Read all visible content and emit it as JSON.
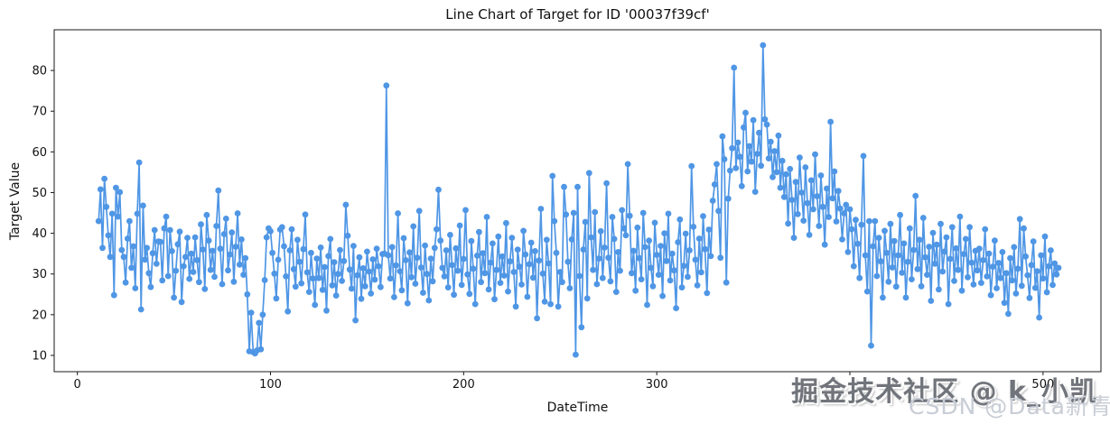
{
  "figure": {
    "title": "Line Chart of Target for ID '00037f39cf'"
  },
  "watermarks": {
    "juejin": "掘金技术社区 @ k_小凯",
    "csdn": "CSDN @Data新青年"
  },
  "chart_data": {
    "type": "line",
    "title": "Line Chart of Target for ID '00037f39cf'",
    "xlabel": "DateTime",
    "ylabel": "Target Value",
    "series_name": "Target",
    "series_color": "#4f96e5",
    "marker": "circle",
    "grid": false,
    "legend": null,
    "xlim": [
      -12,
      530
    ],
    "ylim": [
      6,
      90
    ],
    "x_ticks": [
      0,
      100,
      200,
      300,
      400,
      500
    ],
    "x_tick_labels": [
      "0",
      "100",
      "200",
      "300",
      "",
      "500"
    ],
    "x_tick_label_400_hidden_by_watermark": true,
    "y_ticks": [
      10,
      20,
      30,
      40,
      50,
      60,
      70,
      80
    ],
    "x_start": 11,
    "x_step": 1,
    "y_values": [
      43.0,
      50.8,
      36.4,
      53.4,
      46.5,
      39.5,
      34.2,
      44.8,
      24.8,
      51.2,
      44.1,
      50.1,
      35.9,
      34.2,
      27.9,
      38.7,
      43.0,
      31.5,
      36.8,
      26.5,
      44.8,
      57.4,
      21.3,
      46.8,
      33.5,
      36.4,
      30.2,
      26.8,
      35.1,
      40.8,
      32.5,
      38.0,
      37.9,
      28.4,
      41.2,
      44.1,
      29.5,
      40.8,
      35.6,
      24.2,
      30.8,
      37.3,
      40.4,
      23.1,
      31.9,
      34.2,
      38.9,
      28.8,
      35.0,
      30.5,
      39.0,
      33.4,
      28.0,
      42.2,
      36.0,
      26.3,
      44.5,
      38.2,
      31.0,
      35.7,
      29.3,
      41.8,
      50.5,
      36.2,
      27.5,
      39.8,
      43.6,
      30.9,
      34.8,
      40.2,
      28.1,
      36.7,
      44.9,
      32.3,
      38.5,
      29.8,
      33.9,
      25.0,
      11.0,
      20.5,
      10.8,
      10.5,
      11.2,
      18.0,
      11.5,
      20.0,
      28.5,
      39.0,
      41.2,
      40.5,
      35.2,
      30.1,
      24.0,
      33.5,
      40.9,
      41.5,
      36.8,
      29.4,
      20.8,
      35.8,
      41.0,
      31.2,
      26.9,
      38.4,
      33.0,
      27.7,
      36.1,
      44.6,
      30.4,
      25.6,
      35.2,
      28.9,
      22.4,
      33.8,
      29.0,
      36.5,
      26.1,
      31.7,
      21.0,
      34.4,
      38.6,
      27.2,
      32.9,
      24.7,
      30.0,
      35.9,
      28.3,
      33.2,
      47.0,
      39.4,
      31.1,
      26.4,
      36.9,
      18.6,
      29.7,
      34.1,
      23.9,
      31.4,
      27.0,
      35.5,
      30.6,
      25.2,
      33.6,
      28.6,
      36.2,
      31.9,
      26.8,
      34.9,
      35.0,
      76.3,
      34.6,
      28.9,
      36.6,
      24.3,
      32.1,
      44.9,
      30.7,
      26.0,
      38.8,
      33.4,
      22.8,
      35.3,
      29.2,
      41.7,
      27.6,
      34.0,
      45.5,
      31.6,
      25.4,
      37.0,
      30.0,
      23.5,
      33.8,
      28.2,
      36.4,
      41.0,
      50.7,
      38.2,
      31.5,
      29.4,
      35.8,
      26.7,
      39.6,
      32.2,
      24.9,
      36.3,
      30.8,
      41.9,
      27.3,
      33.7,
      45.7,
      29.9,
      25.1,
      38.1,
      31.3,
      22.6,
      34.5,
      40.3,
      28.0,
      35.1,
      30.2,
      44.0,
      26.2,
      32.8,
      37.5,
      23.8,
      31.0,
      39.2,
      27.8,
      34.3,
      29.6,
      42.5,
      25.7,
      33.1,
      38.9,
      30.5,
      22.0,
      36.0,
      31.8,
      27.4,
      40.6,
      34.8,
      24.4,
      32.4,
      37.7,
      29.1,
      35.6,
      19.1,
      33.3,
      46.0,
      30.1,
      23.2,
      38.4,
      32.6,
      22.6,
      54.1,
      43.0,
      35.2,
      22.0,
      30.5,
      28.0,
      51.4,
      44.6,
      33.0,
      26.5,
      38.5,
      45.0,
      10.2,
      51.4,
      29.5,
      16.9,
      36.0,
      42.8,
      24.0,
      54.8,
      39.0,
      31.0,
      45.2,
      27.5,
      33.8,
      40.5,
      29.0,
      36.5,
      52.3,
      34.0,
      28.2,
      44.0,
      38.6,
      25.6,
      35.4,
      30.8,
      45.7,
      41.2,
      39.5,
      57.0,
      44.3,
      30.2,
      35.7,
      25.9,
      41.4,
      33.9,
      28.7,
      45.0,
      36.6,
      22.4,
      38.2,
      31.5,
      27.0,
      42.6,
      34.7,
      29.8,
      36.9,
      24.6,
      40.0,
      33.2,
      44.8,
      28.4,
      35.0,
      30.9,
      21.6,
      37.8,
      43.4,
      26.7,
      32.0,
      39.9,
      29.3,
      35.8,
      56.5,
      41.6,
      33.5,
      27.2,
      38.7,
      30.4,
      44.2,
      36.1,
      25.3,
      40.9,
      34.4,
      48.0,
      52.0,
      57.0,
      45.5,
      34.0,
      63.8,
      58.2,
      27.9,
      48.5,
      55.4,
      60.9,
      80.7,
      56.0,
      62.3,
      58.8,
      51.6,
      66.0,
      69.6,
      55.2,
      61.4,
      57.6,
      67.8,
      50.2,
      59.5,
      64.7,
      56.6,
      86.2,
      68.0,
      66.7,
      58.4,
      62.5,
      53.8,
      60.2,
      55.0,
      64.0,
      51.2,
      57.8,
      48.9,
      54.5,
      42.4,
      55.8,
      48.2,
      38.9,
      52.6,
      44.7,
      58.6,
      50.0,
      43.1,
      56.2,
      47.4,
      39.6,
      53.0,
      45.9,
      59.4,
      49.1,
      41.8,
      54.2,
      46.5,
      37.2,
      51.0,
      44.0,
      67.4,
      48.6,
      55.2,
      42.9,
      50.4,
      46.1,
      38.5,
      44.9,
      47.0,
      35.4,
      45.9,
      41.0,
      31.9,
      43.3,
      37.4,
      29.0,
      42.1,
      59.0,
      34.6,
      25.7,
      43.0,
      12.4,
      36.8,
      43.0,
      29.5,
      38.9,
      33.1,
      24.2,
      40.6,
      35.2,
      28.1,
      42.3,
      31.6,
      38.1,
      26.9,
      34.6,
      44.5,
      30.3,
      37.5,
      24.2,
      33.0,
      41.2,
      28.7,
      35.9,
      49.2,
      31.2,
      38.4,
      27.0,
      43.8,
      34.1,
      29.8,
      36.7,
      23.4,
      40.1,
      32.5,
      37.2,
      26.2,
      42.3,
      30.6,
      35.5,
      39.0,
      22.6,
      33.7,
      41.5,
      28.3,
      36.3,
      31.0,
      44.1,
      25.9,
      34.9,
      38.6,
      29.2,
      41.5,
      32.8,
      27.4,
      35.7,
      30.9,
      36.2,
      27.8,
      33.4,
      41.0,
      29.4,
      35.0,
      24.8,
      31.8,
      38.2,
      26.5,
      32.7,
      29.0,
      35.4,
      22.9,
      30.2,
      20.2,
      33.9,
      28.4,
      36.6,
      25.2,
      31.3,
      43.5,
      27.1,
      41.2,
      34.3,
      29.7,
      24.1,
      32.2,
      38.0,
      26.6,
      30.7,
      19.3,
      34.6,
      28.9,
      39.2,
      25.5,
      31.9,
      35.8,
      27.3,
      32.6,
      29.9,
      31.5
    ]
  }
}
